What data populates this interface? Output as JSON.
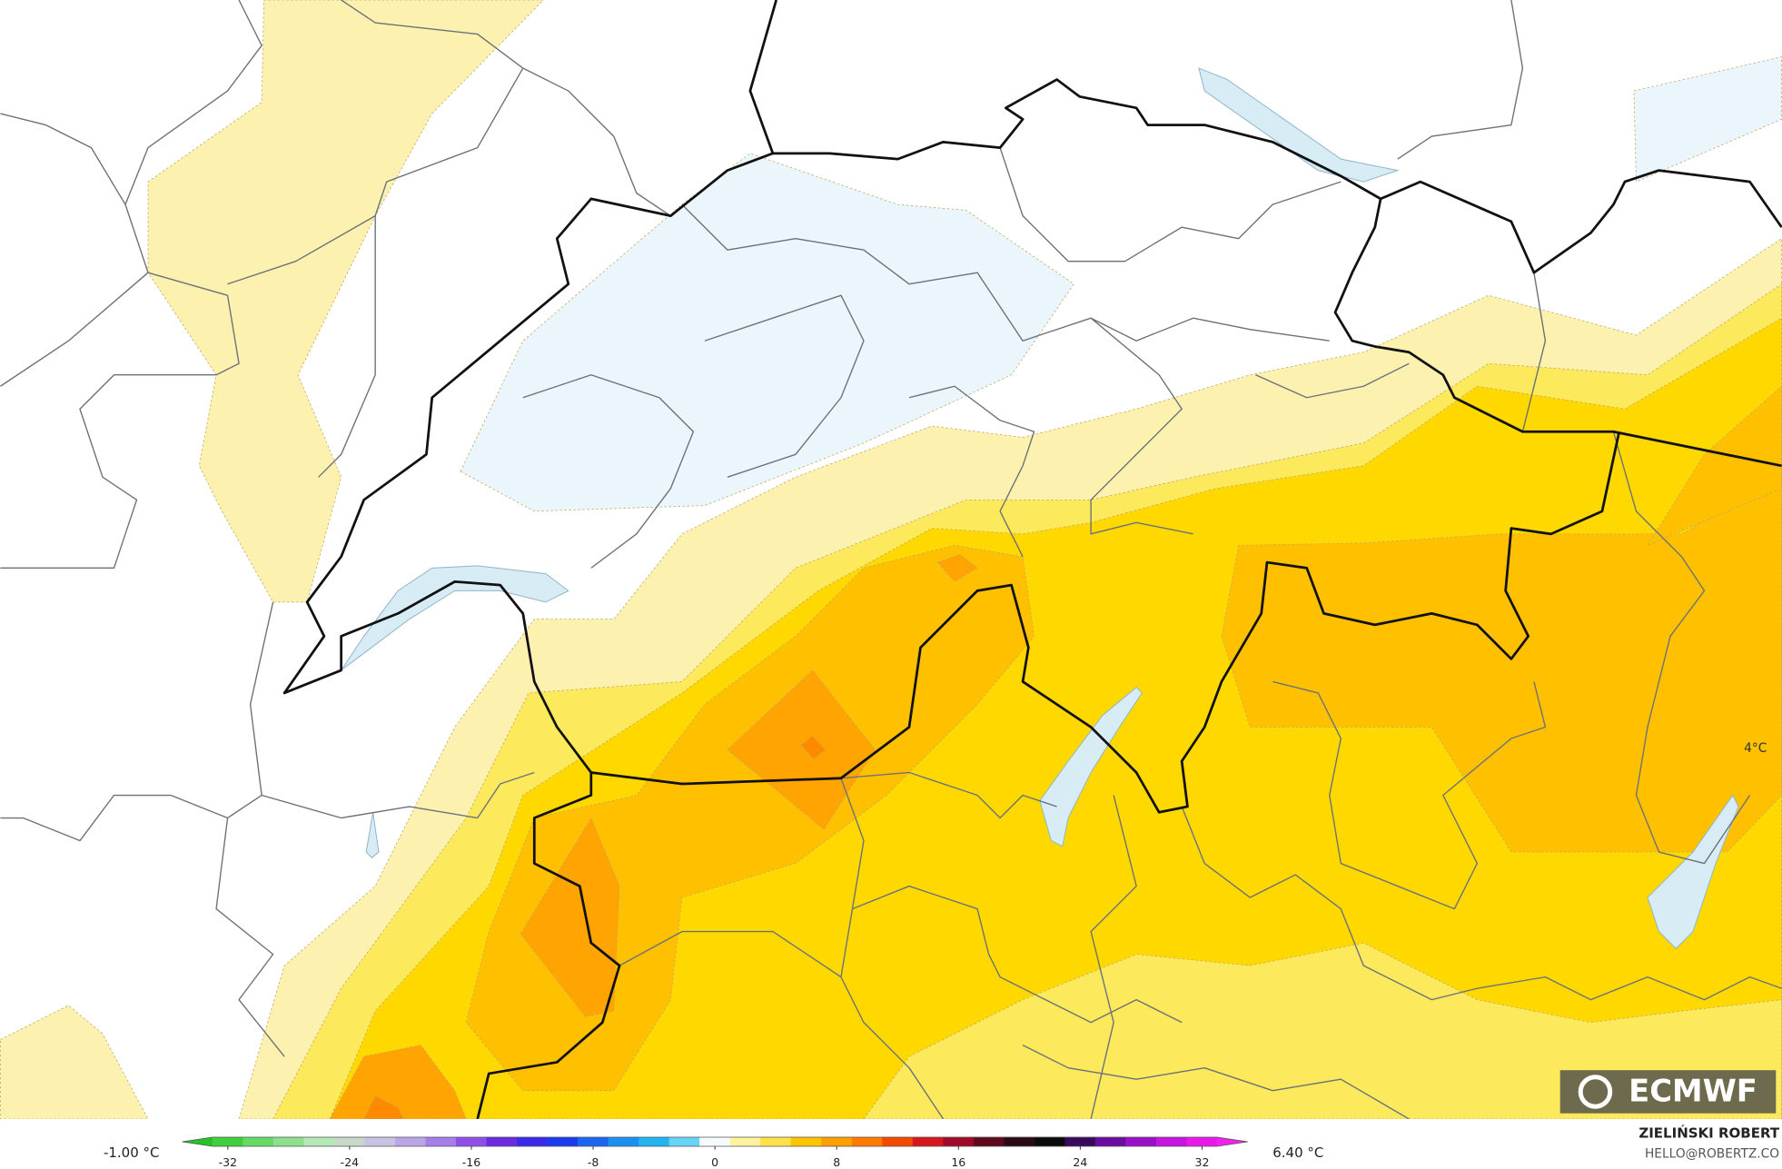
{
  "map": {
    "label": "4°C",
    "logo": "ECMWF"
  },
  "colorbar": {
    "min_label": "-1.00 °C",
    "max_label": "6.40 °C",
    "lim": [
      -35,
      35
    ],
    "ticks": [
      -32,
      -24,
      -16,
      -8,
      0,
      8,
      16,
      24,
      32
    ],
    "colors": [
      "#22c322",
      "#3fcf3f",
      "#66d966",
      "#8ee08e",
      "#b5e6b5",
      "#c8d8c8",
      "#c9c3e3",
      "#b9a6e6",
      "#a67ee8",
      "#8f4fe6",
      "#6a2ae0",
      "#3a2ae8",
      "#1a3af0",
      "#1a66f0",
      "#1a90f0",
      "#22b4f0",
      "#66d4f5",
      "#f5fbfd",
      "#fff3a0",
      "#ffe14a",
      "#ffc400",
      "#ffa000",
      "#ff7a00",
      "#f24a00",
      "#d6161e",
      "#a00a28",
      "#5e0a1e",
      "#2a0a14",
      "#0a0a0a",
      "#3a0a5a",
      "#6a0ca0",
      "#9a10c8",
      "#c814e0",
      "#e818ec",
      "#f020f0"
    ]
  },
  "credit": {
    "author": "ZIELIŃSKI ROBERT",
    "contact": "HELLO@ROBERTZ.CO"
  }
}
